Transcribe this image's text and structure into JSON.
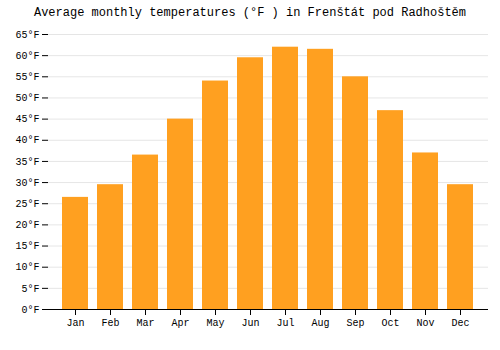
{
  "chart_data": {
    "type": "bar",
    "title": "Average monthly temperatures (°F ) in Frenštát pod Radhoštěm",
    "categories": [
      "Jan",
      "Feb",
      "Mar",
      "Apr",
      "May",
      "Jun",
      "Jul",
      "Aug",
      "Sep",
      "Oct",
      "Nov",
      "Dec"
    ],
    "values": [
      26.5,
      29.5,
      36.5,
      45.0,
      54.0,
      59.5,
      62.0,
      61.5,
      55.0,
      47.0,
      37.0,
      29.5
    ],
    "color": "#FFA020",
    "ylim": [
      0,
      65
    ],
    "yticks": [
      {
        "value": 0,
        "label": "0°F"
      },
      {
        "value": 5,
        "label": "5°F"
      },
      {
        "value": 10,
        "label": "10°F"
      },
      {
        "value": 15,
        "label": "15°F"
      },
      {
        "value": 20,
        "label": "20°F"
      },
      {
        "value": 25,
        "label": "25°F"
      },
      {
        "value": 30,
        "label": "30°F"
      },
      {
        "value": 35,
        "label": "35°F"
      },
      {
        "value": 40,
        "label": "40°F"
      },
      {
        "value": 45,
        "label": "45°F"
      },
      {
        "value": 50,
        "label": "50°F"
      },
      {
        "value": 55,
        "label": "55°F"
      },
      {
        "value": 60,
        "label": "60°F"
      },
      {
        "value": 65,
        "label": "65°F"
      }
    ],
    "grid": true
  }
}
